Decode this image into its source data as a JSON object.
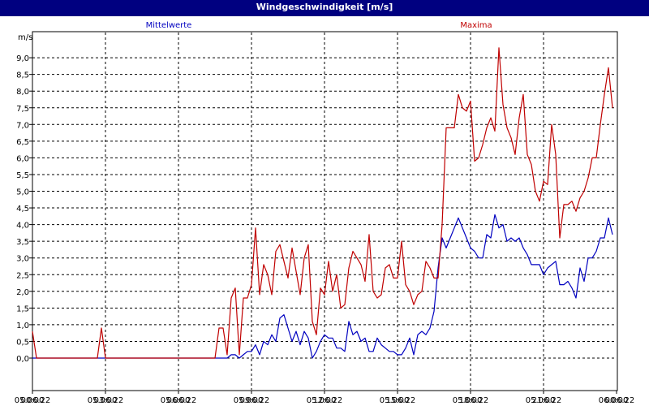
{
  "window": {
    "title": "Windgeschwindigkeit [m/s]"
  },
  "chart_data": {
    "type": "line",
    "title": "Windgeschwindigkeit [m/s]",
    "ylabel": "m/s",
    "xlabel": "",
    "ylim": [
      -0.5,
      10.0
    ],
    "xlim": [
      "05.06.22 00:00",
      "06.06.22 00:00"
    ],
    "grid": true,
    "legend_position": "top",
    "y_ticks": [
      "0,0",
      "0,5",
      "1,0",
      "1,5",
      "2,0",
      "2,5",
      "3,0",
      "3,5",
      "4,0",
      "4,5",
      "5,0",
      "5,5",
      "6,0",
      "6,5",
      "7,0",
      "7,5",
      "8,0",
      "8,5",
      "9,0"
    ],
    "x_ticks": [
      {
        "time": "00:00",
        "date": "05.06.22"
      },
      {
        "time": "03:00",
        "date": "05.06.22"
      },
      {
        "time": "06:00",
        "date": "05.06.22"
      },
      {
        "time": "09:00",
        "date": "05.06.22"
      },
      {
        "time": "12:00",
        "date": "05.06.22"
      },
      {
        "time": "15:00",
        "date": "05.06.22"
      },
      {
        "time": "18:00",
        "date": "05.06.22"
      },
      {
        "time": "21:00",
        "date": "05.06.22"
      },
      {
        "time": "00:00",
        "date": "06.06.22"
      }
    ],
    "series": [
      {
        "name": "Mittelwerte",
        "color": "#0000c0",
        "points": [
          [
            "05.06.22 00:00",
            0
          ],
          [
            "05.06.22 08:00",
            0
          ],
          [
            "05.06.22 08:10",
            0.1
          ],
          [
            "05.06.22 08:20",
            0.1
          ],
          [
            "05.06.22 08:30",
            0
          ],
          [
            "05.06.22 08:40",
            0.1
          ],
          [
            "05.06.22 08:50",
            0.2
          ],
          [
            "05.06.22 09:00",
            0.2
          ],
          [
            "05.06.22 09:10",
            0.4
          ],
          [
            "05.06.22 09:20",
            0.1
          ],
          [
            "05.06.22 09:30",
            0.5
          ],
          [
            "05.06.22 09:40",
            0.4
          ],
          [
            "05.06.22 09:50",
            0.7
          ],
          [
            "05.06.22 10:00",
            0.5
          ],
          [
            "05.06.22 10:10",
            1.2
          ],
          [
            "05.06.22 10:20",
            1.3
          ],
          [
            "05.06.22 10:30",
            0.9
          ],
          [
            "05.06.22 10:40",
            0.5
          ],
          [
            "05.06.22 10:50",
            0.8
          ],
          [
            "05.06.22 11:00",
            0.4
          ],
          [
            "05.06.22 11:10",
            0.8
          ],
          [
            "05.06.22 11:20",
            0.6
          ],
          [
            "05.06.22 11:30",
            0
          ],
          [
            "05.06.22 11:40",
            0.2
          ],
          [
            "05.06.22 11:50",
            0.5
          ],
          [
            "05.06.22 12:00",
            0.7
          ],
          [
            "05.06.22 12:10",
            0.6
          ],
          [
            "05.06.22 12:20",
            0.6
          ],
          [
            "05.06.22 12:30",
            0.3
          ],
          [
            "05.06.22 12:40",
            0.3
          ],
          [
            "05.06.22 12:50",
            0.2
          ],
          [
            "05.06.22 13:00",
            1.1
          ],
          [
            "05.06.22 13:10",
            0.7
          ],
          [
            "05.06.22 13:20",
            0.8
          ],
          [
            "05.06.22 13:30",
            0.5
          ],
          [
            "05.06.22 13:40",
            0.6
          ],
          [
            "05.06.22 13:50",
            0.2
          ],
          [
            "05.06.22 14:00",
            0.2
          ],
          [
            "05.06.22 14:10",
            0.6
          ],
          [
            "05.06.22 14:20",
            0.4
          ],
          [
            "05.06.22 14:30",
            0.3
          ],
          [
            "05.06.22 14:40",
            0.2
          ],
          [
            "05.06.22 14:50",
            0.2
          ],
          [
            "05.06.22 15:00",
            0.1
          ],
          [
            "05.06.22 15:10",
            0.1
          ],
          [
            "05.06.22 15:20",
            0.3
          ],
          [
            "05.06.22 15:30",
            0.6
          ],
          [
            "05.06.22 15:40",
            0.1
          ],
          [
            "05.06.22 15:50",
            0.7
          ],
          [
            "05.06.22 16:00",
            0.8
          ],
          [
            "05.06.22 16:10",
            0.7
          ],
          [
            "05.06.22 16:20",
            0.9
          ],
          [
            "05.06.22 16:30",
            1.4
          ],
          [
            "05.06.22 16:40",
            2.7
          ],
          [
            "05.06.22 16:50",
            3.6
          ],
          [
            "05.06.22 17:00",
            3.3
          ],
          [
            "05.06.22 17:10",
            3.6
          ],
          [
            "05.06.22 17:20",
            3.9
          ],
          [
            "05.06.22 17:30",
            4.2
          ],
          [
            "05.06.22 17:40",
            3.9
          ],
          [
            "05.06.22 17:50",
            3.6
          ],
          [
            "05.06.22 18:00",
            3.3
          ],
          [
            "05.06.22 18:10",
            3.2
          ],
          [
            "05.06.22 18:20",
            3.0
          ],
          [
            "05.06.22 18:30",
            3.0
          ],
          [
            "05.06.22 18:40",
            3.7
          ],
          [
            "05.06.22 18:50",
            3.6
          ],
          [
            "05.06.22 19:00",
            4.3
          ],
          [
            "05.06.22 19:10",
            3.9
          ],
          [
            "05.06.22 19:20",
            4.0
          ],
          [
            "05.06.22 19:30",
            3.5
          ],
          [
            "05.06.22 19:40",
            3.6
          ],
          [
            "05.06.22 19:50",
            3.5
          ],
          [
            "05.06.22 20:00",
            3.6
          ],
          [
            "05.06.22 20:10",
            3.3
          ],
          [
            "05.06.22 20:20",
            3.1
          ],
          [
            "05.06.22 20:30",
            2.8
          ],
          [
            "05.06.22 20:40",
            2.8
          ],
          [
            "05.06.22 20:50",
            2.8
          ],
          [
            "05.06.22 21:00",
            2.5
          ],
          [
            "05.06.22 21:10",
            2.7
          ],
          [
            "05.06.22 21:20",
            2.8
          ],
          [
            "05.06.22 21:30",
            2.9
          ],
          [
            "05.06.22 21:40",
            2.2
          ],
          [
            "05.06.22 21:50",
            2.2
          ],
          [
            "05.06.22 22:00",
            2.3
          ],
          [
            "05.06.22 22:10",
            2.1
          ],
          [
            "05.06.22 22:20",
            1.8
          ],
          [
            "05.06.22 22:30",
            2.7
          ],
          [
            "05.06.22 22:40",
            2.3
          ],
          [
            "05.06.22 22:50",
            3.0
          ],
          [
            "05.06.22 23:00",
            3.0
          ],
          [
            "05.06.22 23:10",
            3.2
          ],
          [
            "05.06.22 23:20",
            3.6
          ],
          [
            "05.06.22 23:30",
            3.6
          ],
          [
            "05.06.22 23:40",
            4.2
          ],
          [
            "05.06.22 23:50",
            3.7
          ]
        ]
      },
      {
        "name": "Maxima",
        "color": "#c00000",
        "points": [
          [
            "05.06.22 00:00",
            0.8
          ],
          [
            "05.06.22 00:10",
            0
          ],
          [
            "05.06.22 02:40",
            0
          ],
          [
            "05.06.22 02:50",
            0.9
          ],
          [
            "05.06.22 03:00",
            0
          ],
          [
            "05.06.22 07:30",
            0
          ],
          [
            "05.06.22 07:40",
            0.9
          ],
          [
            "05.06.22 07:50",
            0.9
          ],
          [
            "05.06.22 08:00",
            0.1
          ],
          [
            "05.06.22 08:10",
            1.8
          ],
          [
            "05.06.22 08:20",
            2.1
          ],
          [
            "05.06.22 08:30",
            0.1
          ],
          [
            "05.06.22 08:40",
            1.8
          ],
          [
            "05.06.22 08:50",
            1.8
          ],
          [
            "05.06.22 09:00",
            2.2
          ],
          [
            "05.06.22 09:10",
            3.9
          ],
          [
            "05.06.22 09:20",
            1.9
          ],
          [
            "05.06.22 09:30",
            2.8
          ],
          [
            "05.06.22 09:40",
            2.5
          ],
          [
            "05.06.22 09:50",
            1.9
          ],
          [
            "05.06.22 10:00",
            3.2
          ],
          [
            "05.06.22 10:10",
            3.4
          ],
          [
            "05.06.22 10:20",
            2.9
          ],
          [
            "05.06.22 10:30",
            2.4
          ],
          [
            "05.06.22 10:40",
            3.3
          ],
          [
            "05.06.22 10:50",
            2.6
          ],
          [
            "05.06.22 11:00",
            1.9
          ],
          [
            "05.06.22 11:10",
            3.0
          ],
          [
            "05.06.22 11:20",
            3.4
          ],
          [
            "05.06.22 11:30",
            1.1
          ],
          [
            "05.06.22 11:40",
            0.7
          ],
          [
            "05.06.22 11:50",
            2.1
          ],
          [
            "05.06.22 12:00",
            1.9
          ],
          [
            "05.06.22 12:10",
            2.9
          ],
          [
            "05.06.22 12:20",
            2.0
          ],
          [
            "05.06.22 12:30",
            2.5
          ],
          [
            "05.06.22 12:40",
            1.5
          ],
          [
            "05.06.22 12:50",
            1.6
          ],
          [
            "05.06.22 13:00",
            2.7
          ],
          [
            "05.06.22 13:10",
            3.2
          ],
          [
            "05.06.22 13:20",
            3.0
          ],
          [
            "05.06.22 13:30",
            2.8
          ],
          [
            "05.06.22 13:40",
            2.3
          ],
          [
            "05.06.22 13:50",
            3.7
          ],
          [
            "05.06.22 14:00",
            2.0
          ],
          [
            "05.06.22 14:10",
            1.8
          ],
          [
            "05.06.22 14:20",
            1.9
          ],
          [
            "05.06.22 14:30",
            2.7
          ],
          [
            "05.06.22 14:40",
            2.8
          ],
          [
            "05.06.22 14:50",
            2.4
          ],
          [
            "05.06.22 15:00",
            2.4
          ],
          [
            "05.06.22 15:10",
            3.5
          ],
          [
            "05.06.22 15:20",
            2.2
          ],
          [
            "05.06.22 15:30",
            2.0
          ],
          [
            "05.06.22 15:40",
            1.6
          ],
          [
            "05.06.22 15:50",
            1.9
          ],
          [
            "05.06.22 16:00",
            2.0
          ],
          [
            "05.06.22 16:10",
            2.9
          ],
          [
            "05.06.22 16:20",
            2.7
          ],
          [
            "05.06.22 16:30",
            2.4
          ],
          [
            "05.06.22 16:40",
            2.4
          ],
          [
            "05.06.22 16:50",
            4.0
          ],
          [
            "05.06.22 17:00",
            6.9
          ],
          [
            "05.06.22 17:10",
            6.9
          ],
          [
            "05.06.22 17:20",
            6.9
          ],
          [
            "05.06.22 17:30",
            7.9
          ],
          [
            "05.06.22 17:40",
            7.5
          ],
          [
            "05.06.22 17:50",
            7.4
          ],
          [
            "05.06.22 18:00",
            7.7
          ],
          [
            "05.06.22 18:10",
            5.9
          ],
          [
            "05.06.22 18:20",
            6.0
          ],
          [
            "05.06.22 18:30",
            6.4
          ],
          [
            "05.06.22 18:40",
            6.9
          ],
          [
            "05.06.22 18:50",
            7.2
          ],
          [
            "05.06.22 19:00",
            6.8
          ],
          [
            "05.06.22 19:10",
            9.3
          ],
          [
            "05.06.22 19:20",
            7.6
          ],
          [
            "05.06.22 19:30",
            6.9
          ],
          [
            "05.06.22 19:40",
            6.6
          ],
          [
            "05.06.22 19:50",
            6.1
          ],
          [
            "05.06.22 20:00",
            7.2
          ],
          [
            "05.06.22 20:10",
            7.9
          ],
          [
            "05.06.22 20:20",
            6.1
          ],
          [
            "05.06.22 20:30",
            5.8
          ],
          [
            "05.06.22 20:40",
            5.0
          ],
          [
            "05.06.22 20:50",
            4.7
          ],
          [
            "05.06.22 21:00",
            5.3
          ],
          [
            "05.06.22 21:10",
            5.2
          ],
          [
            "05.06.22 21:20",
            7.0
          ],
          [
            "05.06.22 21:30",
            6.1
          ],
          [
            "05.06.22 21:40",
            3.6
          ],
          [
            "05.06.22 21:50",
            4.6
          ],
          [
            "05.06.22 22:00",
            4.6
          ],
          [
            "05.06.22 22:10",
            4.7
          ],
          [
            "05.06.22 22:20",
            4.4
          ],
          [
            "05.06.22 22:30",
            4.8
          ],
          [
            "05.06.22 22:40",
            5.0
          ],
          [
            "05.06.22 22:50",
            5.4
          ],
          [
            "05.06.22 23:00",
            6.0
          ],
          [
            "05.06.22 23:10",
            6.0
          ],
          [
            "05.06.22 23:20",
            7.0
          ],
          [
            "05.06.22 23:30",
            7.9
          ],
          [
            "05.06.22 23:40",
            8.7
          ],
          [
            "05.06.22 23:50",
            7.5
          ]
        ]
      }
    ]
  }
}
